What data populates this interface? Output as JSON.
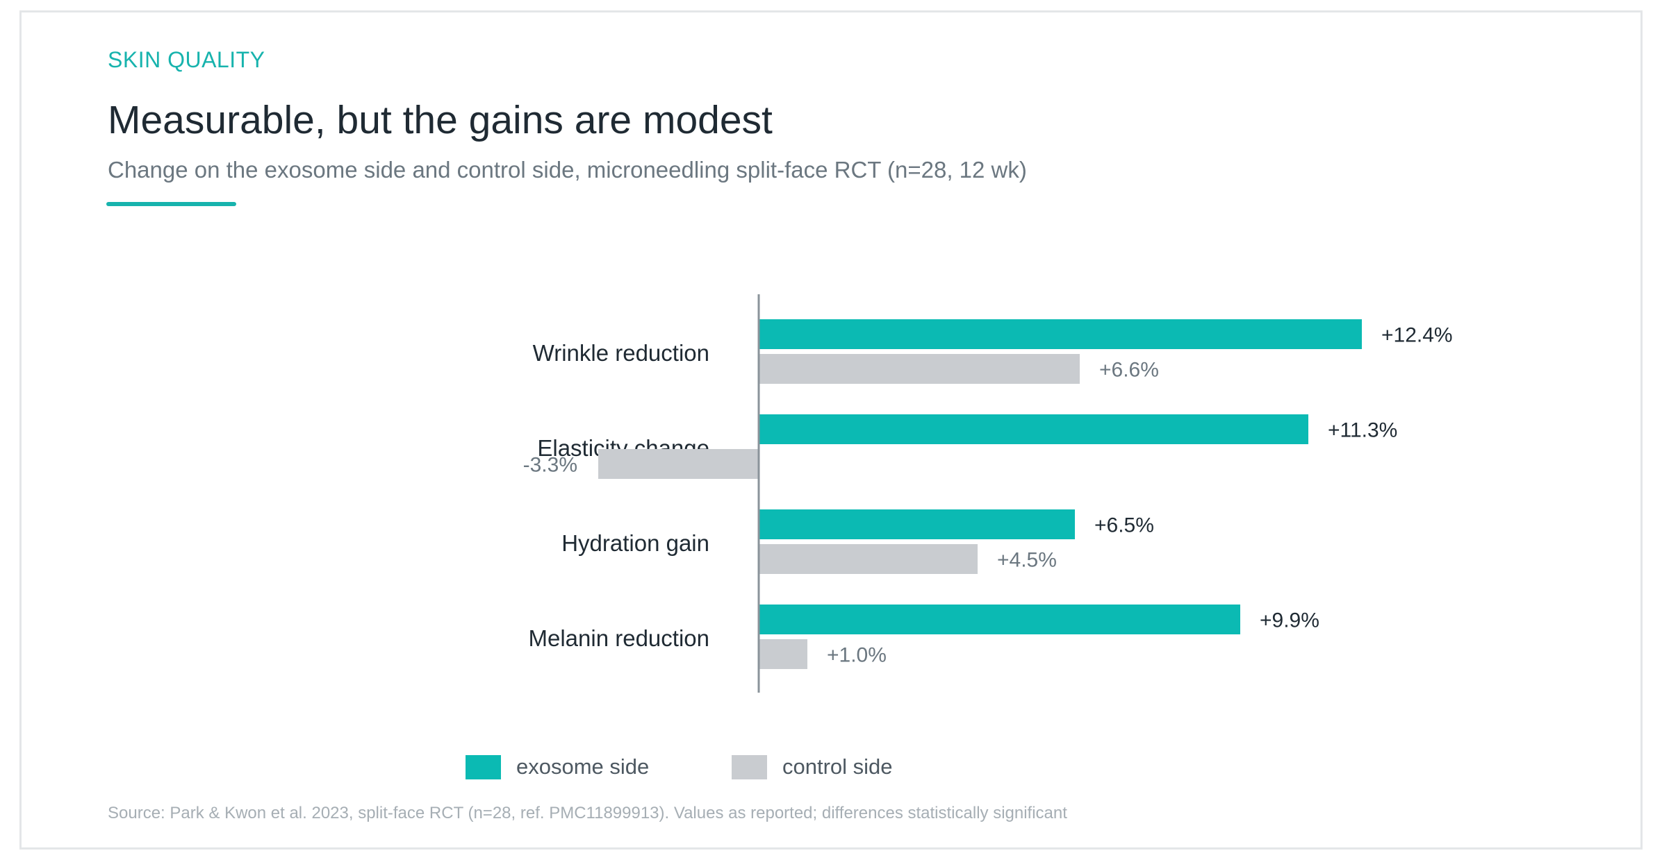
{
  "header": {
    "eyebrow": "SKIN QUALITY",
    "title": "Measurable, but the gains are modest",
    "subtitle": "Change on the exosome side and control side, microneedling split-face RCT (n=28, 12 wk)"
  },
  "colors": {
    "exosome": "#0bbab3",
    "control": "#c9ccd0",
    "axis": "#8a939a",
    "label_dark": "#1f2a33",
    "label_muted": "#6b7780"
  },
  "chart_data": {
    "type": "bar",
    "orientation": "horizontal",
    "categories": [
      "Wrinkle reduction",
      "Elasticity change",
      "Hydration gain",
      "Melanin reduction"
    ],
    "series": [
      {
        "name": "exosome side",
        "values": [
          12.4,
          11.3,
          6.5,
          9.9
        ],
        "labels": [
          "+12.4%",
          "+11.3%",
          "+6.5%",
          "+9.9%"
        ]
      },
      {
        "name": "control side",
        "values": [
          6.6,
          -3.3,
          4.5,
          1.0
        ],
        "labels": [
          "+6.6%",
          "-3.3%",
          "+4.5%",
          "+1.0%"
        ]
      }
    ],
    "legend_position": "bottom",
    "grid": false
  },
  "legend": {
    "exosome": "exosome side",
    "control": "control side"
  },
  "footer": {
    "source": "Source: Park & Kwon et al. 2023, split-face RCT (n=28, ref. PMC11899913). Values as reported; differences statistically significant"
  }
}
